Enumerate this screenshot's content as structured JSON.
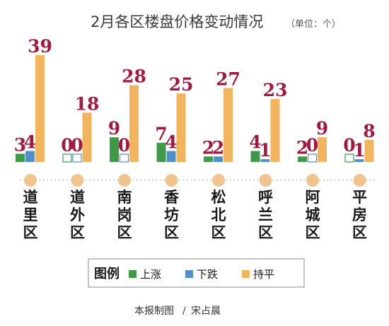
{
  "colors": {
    "rise": "#3f9a48",
    "fall": "#4f8fcc",
    "flat": "#f2b55e",
    "value_text": "#a2183f",
    "dot": "#f0c48e",
    "dotted_line": "#c8c8c8"
  },
  "chart_data": {
    "type": "bar",
    "title": "2月各区楼盘价格变动情况",
    "unit": "（单位：个）",
    "categories": [
      "道里区",
      "道外区",
      "南岗区",
      "香坊区",
      "松北区",
      "呼兰区",
      "阿城区",
      "平房区"
    ],
    "series": [
      {
        "name": "上涨",
        "values": [
          3,
          0,
          9,
          7,
          2,
          4,
          2,
          0
        ]
      },
      {
        "name": "下跌",
        "values": [
          4,
          0,
          0,
          4,
          2,
          1,
          0,
          1
        ]
      },
      {
        "name": "持平",
        "values": [
          39,
          18,
          28,
          25,
          27,
          23,
          9,
          8
        ]
      }
    ],
    "ylim": [
      0,
      39
    ],
    "legend_title": "图例",
    "legend_position": "bottom"
  },
  "credit": {
    "prefix": "本报制图",
    "separator": "/",
    "author": "宋占晨"
  }
}
